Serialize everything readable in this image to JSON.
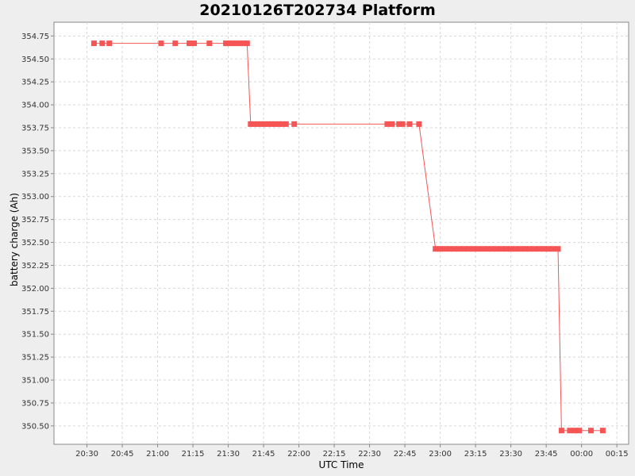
{
  "chart_data": {
    "type": "line",
    "title": "20210126T202734 Platform",
    "xlabel": "UTC Time",
    "ylabel": "battery charge (Ah)",
    "x_ticks": [
      "20:30",
      "20:45",
      "21:00",
      "21:15",
      "21:30",
      "21:45",
      "22:00",
      "22:15",
      "22:30",
      "22:45",
      "23:00",
      "23:15",
      "23:30",
      "23:45",
      "00:00",
      "00:15"
    ],
    "x_tick_minutes": [
      0,
      15,
      30,
      45,
      60,
      75,
      90,
      105,
      120,
      135,
      150,
      165,
      180,
      195,
      210,
      225
    ],
    "xlim_minutes": [
      -14,
      230
    ],
    "y_ticks": [
      "354.75",
      "354.50",
      "354.25",
      "354.00",
      "353.75",
      "353.50",
      "353.25",
      "353.00",
      "352.75",
      "352.50",
      "352.25",
      "352.00",
      "351.75",
      "351.50",
      "351.25",
      "351.00",
      "350.75",
      "350.50"
    ],
    "ylim": [
      350.3,
      354.9
    ],
    "grid": true,
    "series_color": "#f55555",
    "series": [
      {
        "x_minutes": [
          3,
          6.5,
          9.5,
          31.5,
          37.5,
          43.5,
          45.5,
          52,
          59,
          60.5,
          62,
          63.5,
          65,
          66.5,
          68,
          69.5,
          71,
          72.5,
          74,
          75.5,
          77,
          78.5,
          80,
          81.5,
          83,
          84.5,
          88,
          127.5,
          129.5,
          132.5,
          134,
          137,
          141,
          148,
          150,
          152,
          154,
          156,
          158,
          160,
          162,
          164,
          166,
          168,
          170,
          172,
          174,
          176,
          178,
          180,
          182,
          184,
          186,
          188,
          190,
          192,
          194,
          196,
          198,
          200,
          201.5,
          205,
          207,
          209,
          214,
          219
        ],
        "values": [
          354.67,
          354.67,
          354.67,
          354.67,
          354.67,
          354.67,
          354.67,
          354.67,
          354.67,
          354.67,
          354.67,
          354.67,
          354.67,
          354.67,
          354.67,
          353.79,
          353.79,
          353.79,
          353.79,
          353.79,
          353.79,
          353.79,
          353.79,
          353.79,
          353.79,
          353.79,
          353.79,
          353.79,
          353.79,
          353.79,
          353.79,
          353.79,
          353.79,
          352.43,
          352.43,
          352.43,
          352.43,
          352.43,
          352.43,
          352.43,
          352.43,
          352.43,
          352.43,
          352.43,
          352.43,
          352.43,
          352.43,
          352.43,
          352.43,
          352.43,
          352.43,
          352.43,
          352.43,
          352.43,
          352.43,
          352.43,
          352.43,
          352.43,
          352.43,
          352.43,
          350.45,
          350.45,
          350.45,
          350.45,
          350.45,
          350.45
        ]
      }
    ]
  }
}
